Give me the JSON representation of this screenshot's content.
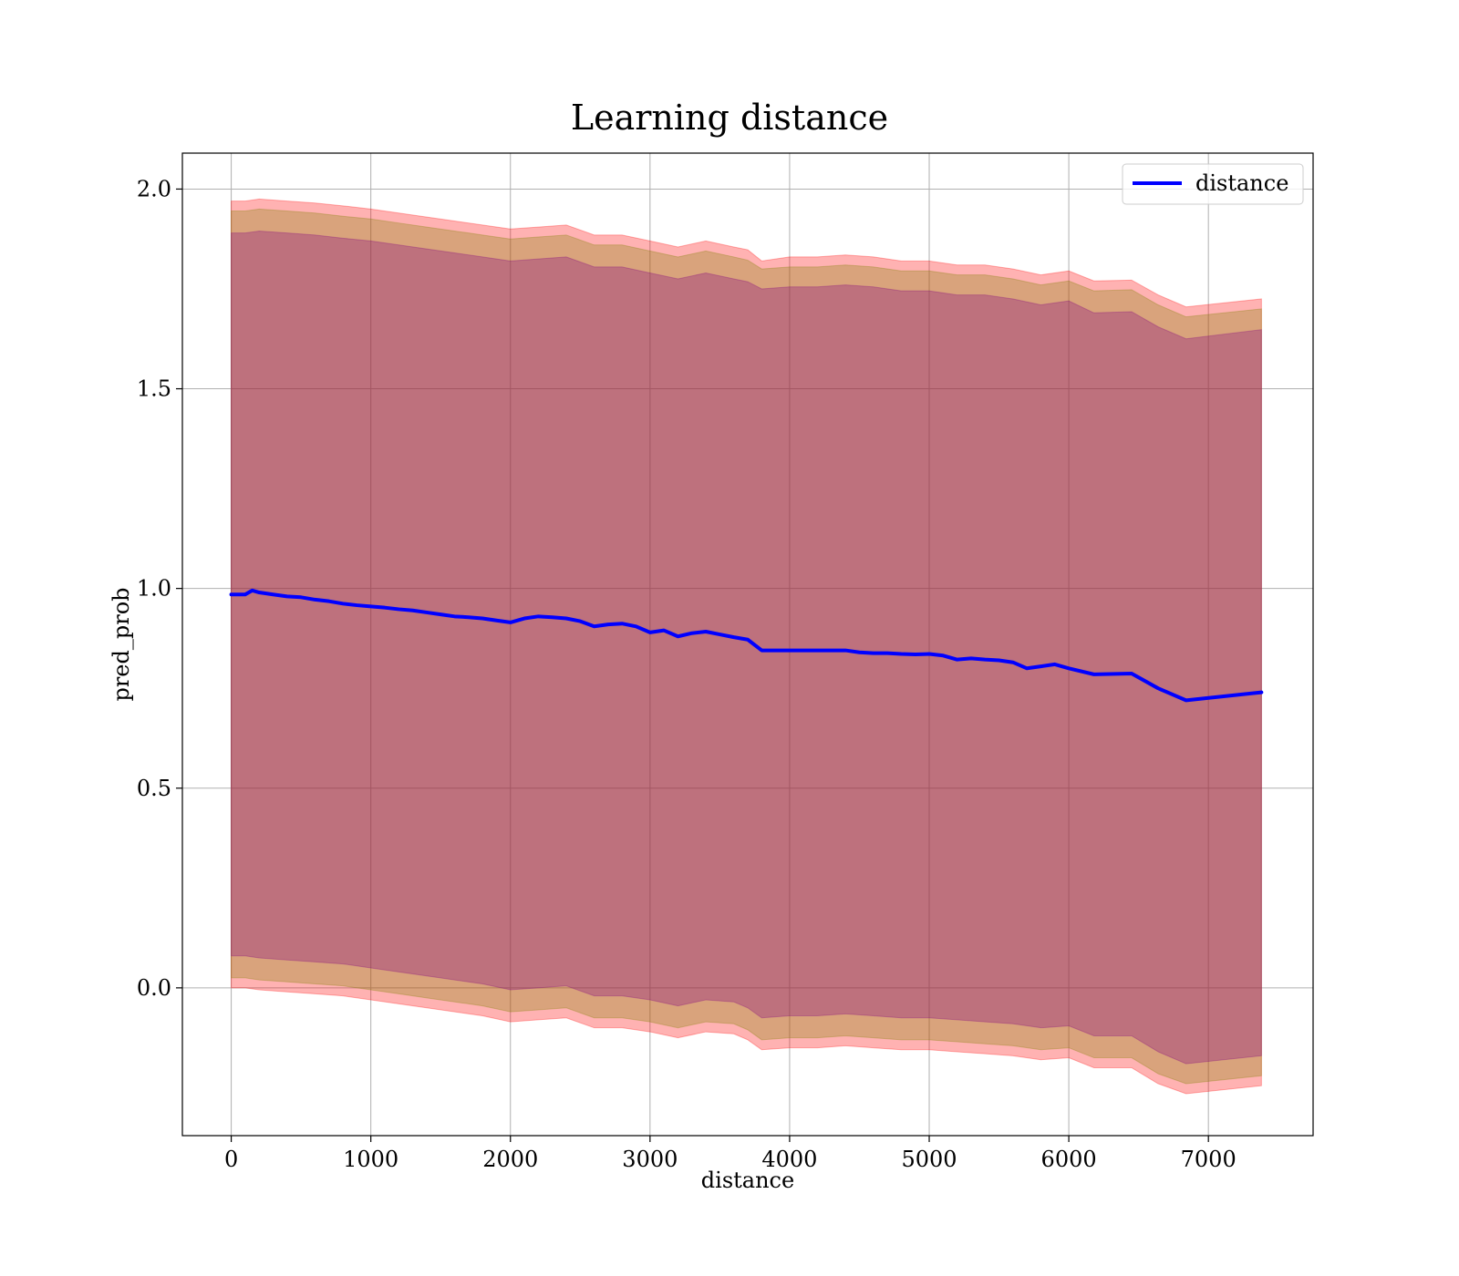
{
  "chart_data": {
    "type": "line",
    "title": "Learning distance",
    "xlabel": "distance",
    "ylabel": "pred_prob",
    "xlim": [
      -350,
      7750
    ],
    "ylim": [
      -0.37,
      2.09
    ],
    "x_ticks": [
      0,
      1000,
      2000,
      3000,
      4000,
      5000,
      6000,
      7000
    ],
    "x_tick_labels": [
      "0",
      "1000",
      "2000",
      "3000",
      "4000",
      "5000",
      "6000",
      "7000"
    ],
    "y_ticks": [
      0.0,
      0.5,
      1.0,
      1.5,
      2.0
    ],
    "y_tick_labels": [
      "0.0",
      "0.5",
      "1.0",
      "1.5",
      "2.0"
    ],
    "grid": true,
    "legend_position": "top-right",
    "series": [
      {
        "name": "distance",
        "color": "#0000ff",
        "x": [
          0,
          100,
          150,
          200,
          300,
          400,
          500,
          600,
          700,
          800,
          900,
          1000,
          1100,
          1200,
          1300,
          1400,
          1500,
          1600,
          1700,
          1800,
          1900,
          2000,
          2100,
          2200,
          2300,
          2400,
          2500,
          2600,
          2700,
          2800,
          2900,
          3000,
          3100,
          3200,
          3300,
          3400,
          3500,
          3600,
          3700,
          3800,
          3900,
          4000,
          4100,
          4200,
          4300,
          4400,
          4500,
          4600,
          4700,
          4800,
          4900,
          5000,
          5100,
          5200,
          5300,
          5400,
          5500,
          5600,
          5700,
          5800,
          5900,
          6000,
          6180,
          6450,
          6640,
          6840,
          7380
        ],
        "y": [
          0.985,
          0.985,
          0.995,
          0.99,
          0.985,
          0.98,
          0.978,
          0.972,
          0.968,
          0.962,
          0.958,
          0.955,
          0.952,
          0.948,
          0.945,
          0.94,
          0.935,
          0.93,
          0.928,
          0.925,
          0.92,
          0.915,
          0.925,
          0.93,
          0.928,
          0.925,
          0.918,
          0.905,
          0.91,
          0.912,
          0.905,
          0.89,
          0.895,
          0.88,
          0.888,
          0.892,
          0.885,
          0.878,
          0.872,
          0.845,
          0.845,
          0.845,
          0.845,
          0.845,
          0.845,
          0.845,
          0.84,
          0.838,
          0.838,
          0.836,
          0.835,
          0.836,
          0.832,
          0.822,
          0.825,
          0.822,
          0.82,
          0.815,
          0.8,
          0.805,
          0.81,
          0.8,
          0.785,
          0.787,
          0.75,
          0.72,
          0.74
        ]
      }
    ],
    "bands": [
      {
        "color": "#ff0000",
        "opacity": 0.3,
        "x": [
          0,
          100,
          200,
          400,
          600,
          800,
          1000,
          1200,
          1400,
          1600,
          1800,
          2000,
          2200,
          2400,
          2600,
          2800,
          3000,
          3200,
          3400,
          3600,
          3700,
          3800,
          4000,
          4200,
          4400,
          4600,
          4800,
          5000,
          5200,
          5400,
          5600,
          5800,
          6000,
          6180,
          6450,
          6640,
          6840,
          7380
        ],
        "upper": [
          1.97,
          1.97,
          1.975,
          1.97,
          1.965,
          1.958,
          1.95,
          1.94,
          1.93,
          1.92,
          1.91,
          1.9,
          1.905,
          1.91,
          1.885,
          1.885,
          1.87,
          1.855,
          1.87,
          1.855,
          1.848,
          1.82,
          1.83,
          1.83,
          1.835,
          1.83,
          1.82,
          1.82,
          1.81,
          1.81,
          1.8,
          1.785,
          1.795,
          1.77,
          1.772,
          1.735,
          1.705,
          1.725
        ],
        "lower": [
          0.0,
          0.0,
          -0.005,
          -0.01,
          -0.015,
          -0.02,
          -0.03,
          -0.04,
          -0.05,
          -0.06,
          -0.07,
          -0.085,
          -0.08,
          -0.075,
          -0.1,
          -0.1,
          -0.11,
          -0.125,
          -0.11,
          -0.115,
          -0.13,
          -0.155,
          -0.15,
          -0.15,
          -0.145,
          -0.15,
          -0.155,
          -0.155,
          -0.16,
          -0.165,
          -0.17,
          -0.18,
          -0.175,
          -0.2,
          -0.2,
          -0.24,
          -0.265,
          -0.245
        ]
      },
      {
        "color": "#808000",
        "opacity": 0.3,
        "x": [
          0,
          100,
          200,
          400,
          600,
          800,
          1000,
          1200,
          1400,
          1600,
          1800,
          2000,
          2200,
          2400,
          2600,
          2800,
          3000,
          3200,
          3400,
          3600,
          3700,
          3800,
          4000,
          4200,
          4400,
          4600,
          4800,
          5000,
          5200,
          5400,
          5600,
          5800,
          6000,
          6180,
          6450,
          6640,
          6840,
          7380
        ],
        "upper": [
          1.945,
          1.945,
          1.95,
          1.945,
          1.94,
          1.932,
          1.925,
          1.915,
          1.905,
          1.895,
          1.885,
          1.875,
          1.88,
          1.885,
          1.86,
          1.86,
          1.845,
          1.83,
          1.845,
          1.83,
          1.822,
          1.8,
          1.805,
          1.805,
          1.81,
          1.805,
          1.795,
          1.795,
          1.785,
          1.785,
          1.775,
          1.76,
          1.77,
          1.745,
          1.748,
          1.71,
          1.68,
          1.7
        ],
        "lower": [
          0.025,
          0.025,
          0.02,
          0.015,
          0.01,
          0.005,
          -0.005,
          -0.015,
          -0.025,
          -0.035,
          -0.045,
          -0.06,
          -0.055,
          -0.05,
          -0.075,
          -0.075,
          -0.085,
          -0.1,
          -0.085,
          -0.09,
          -0.105,
          -0.13,
          -0.125,
          -0.125,
          -0.12,
          -0.125,
          -0.13,
          -0.13,
          -0.135,
          -0.14,
          -0.145,
          -0.155,
          -0.15,
          -0.175,
          -0.175,
          -0.215,
          -0.24,
          -0.22
        ]
      },
      {
        "color": "#800080",
        "opacity": 0.3,
        "x": [
          0,
          100,
          200,
          400,
          600,
          800,
          1000,
          1200,
          1400,
          1600,
          1800,
          2000,
          2200,
          2400,
          2600,
          2800,
          3000,
          3200,
          3400,
          3600,
          3700,
          3800,
          4000,
          4200,
          4400,
          4600,
          4800,
          5000,
          5200,
          5400,
          5600,
          5800,
          6000,
          6180,
          6450,
          6640,
          6840,
          7380
        ],
        "upper": [
          1.89,
          1.89,
          1.895,
          1.89,
          1.885,
          1.877,
          1.87,
          1.86,
          1.85,
          1.84,
          1.83,
          1.82,
          1.825,
          1.83,
          1.805,
          1.805,
          1.79,
          1.775,
          1.79,
          1.775,
          1.768,
          1.75,
          1.755,
          1.755,
          1.76,
          1.755,
          1.745,
          1.745,
          1.735,
          1.735,
          1.725,
          1.71,
          1.72,
          1.69,
          1.693,
          1.655,
          1.625,
          1.648
        ],
        "lower": [
          0.08,
          0.08,
          0.075,
          0.07,
          0.065,
          0.06,
          0.05,
          0.04,
          0.03,
          0.02,
          0.01,
          -0.005,
          0.0,
          0.005,
          -0.02,
          -0.02,
          -0.03,
          -0.045,
          -0.03,
          -0.035,
          -0.05,
          -0.075,
          -0.07,
          -0.07,
          -0.065,
          -0.07,
          -0.075,
          -0.075,
          -0.08,
          -0.085,
          -0.09,
          -0.1,
          -0.095,
          -0.12,
          -0.12,
          -0.16,
          -0.19,
          -0.17
        ]
      }
    ]
  }
}
